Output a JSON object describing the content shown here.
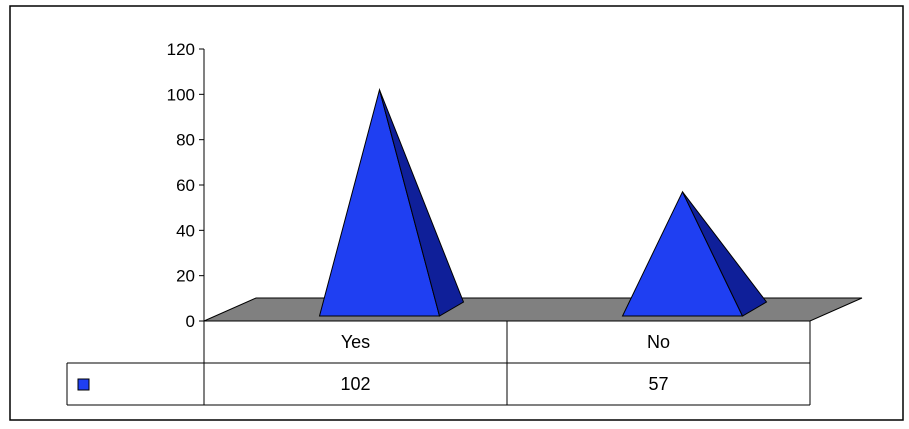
{
  "chart_data": {
    "type": "bar",
    "style": "3d-pyramid",
    "categories": [
      "Yes",
      "No"
    ],
    "series": [
      {
        "values": [
          102,
          57
        ]
      }
    ],
    "title": "",
    "xlabel": "",
    "ylabel": "",
    "ylim": [
      0,
      120
    ],
    "yticks": [
      0,
      20,
      40,
      60,
      80,
      100,
      120
    ],
    "grid": false,
    "legend": "none",
    "data_table": true,
    "colors": {
      "pyramid_front": "#1f3ff2",
      "pyramid_side": "#0f1f99",
      "floor": "#808080",
      "legend_key": "#1f3ff2",
      "frame": "#000000"
    }
  }
}
